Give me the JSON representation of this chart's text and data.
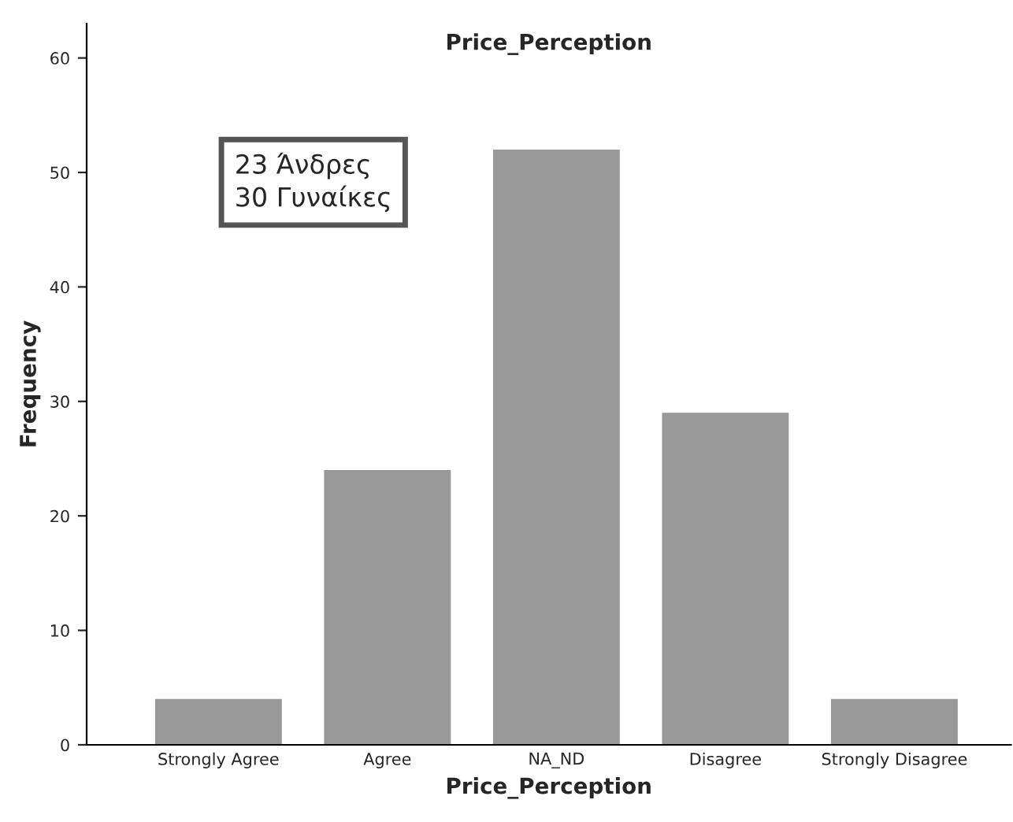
{
  "chart_data": {
    "type": "bar",
    "title": "Price_Perception",
    "xlabel": "Price_Perception",
    "ylabel": "Frequency",
    "categories": [
      "Strongly Agree",
      "Agree",
      "NA_ND",
      "Disagree",
      "Strongly Disagree"
    ],
    "values": [
      4,
      24,
      52,
      29,
      4
    ],
    "color": "#999999",
    "ylim": [
      0,
      63
    ],
    "yticks": [
      0,
      10,
      20,
      30,
      40,
      50,
      60
    ],
    "grid": false,
    "legend": false,
    "annotations": [
      "23 Άνδρες\n30 Γυναίκες"
    ]
  }
}
